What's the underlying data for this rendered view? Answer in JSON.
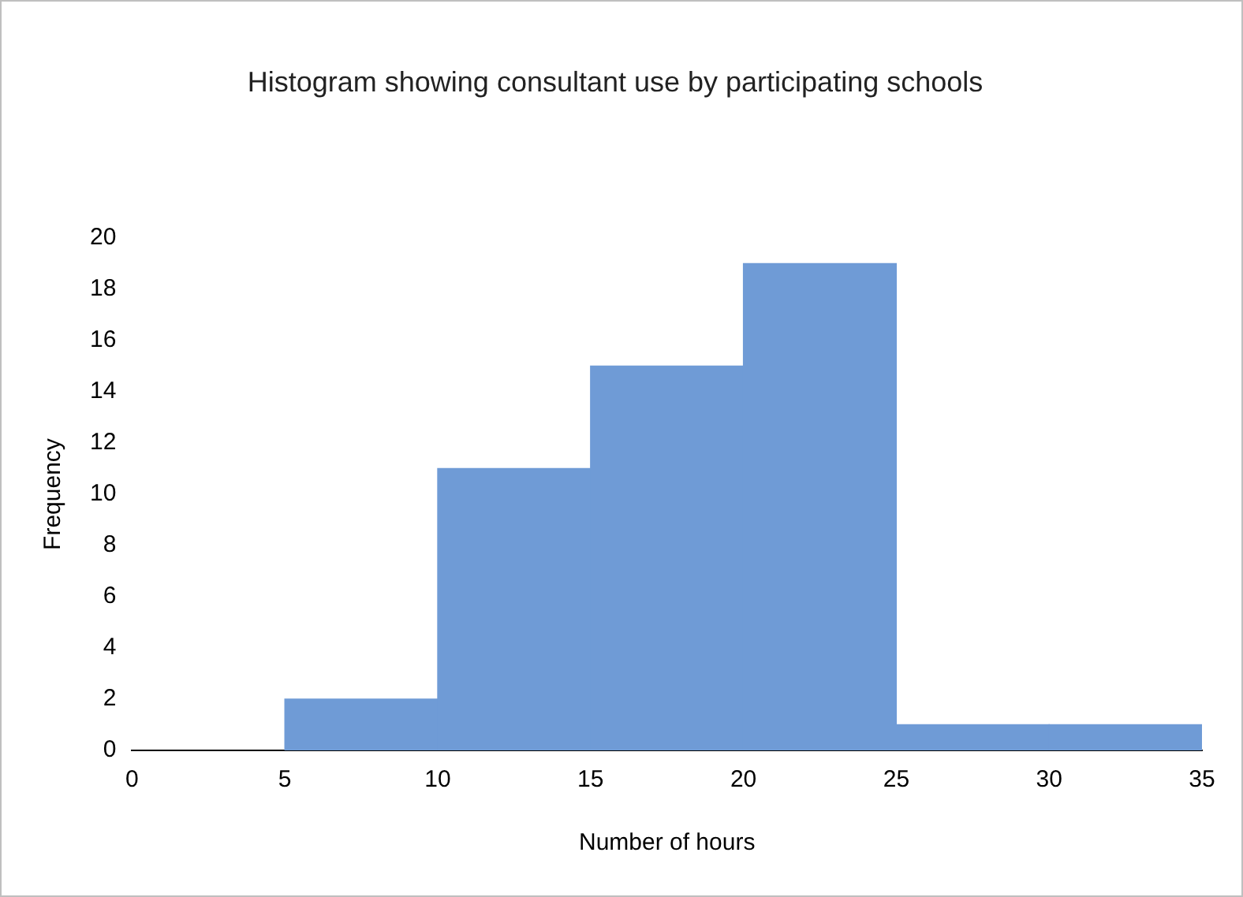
{
  "chart_data": {
    "type": "histogram",
    "title": "Histogram showing consultant use by participating schools",
    "xlabel": "Number of hours",
    "ylabel": "Frequency",
    "bins": [
      5,
      10,
      15,
      20,
      25,
      30,
      35
    ],
    "values": [
      2,
      11,
      15,
      19,
      1,
      1
    ],
    "color": "#6f9bd6",
    "xlim": [
      0,
      35
    ],
    "xticks": [
      0,
      5,
      10,
      15,
      20,
      25,
      30,
      35
    ],
    "ylim": [
      0,
      20
    ],
    "yticks": [
      0,
      2,
      4,
      6,
      8,
      10,
      12,
      14,
      16,
      18,
      20
    ]
  }
}
